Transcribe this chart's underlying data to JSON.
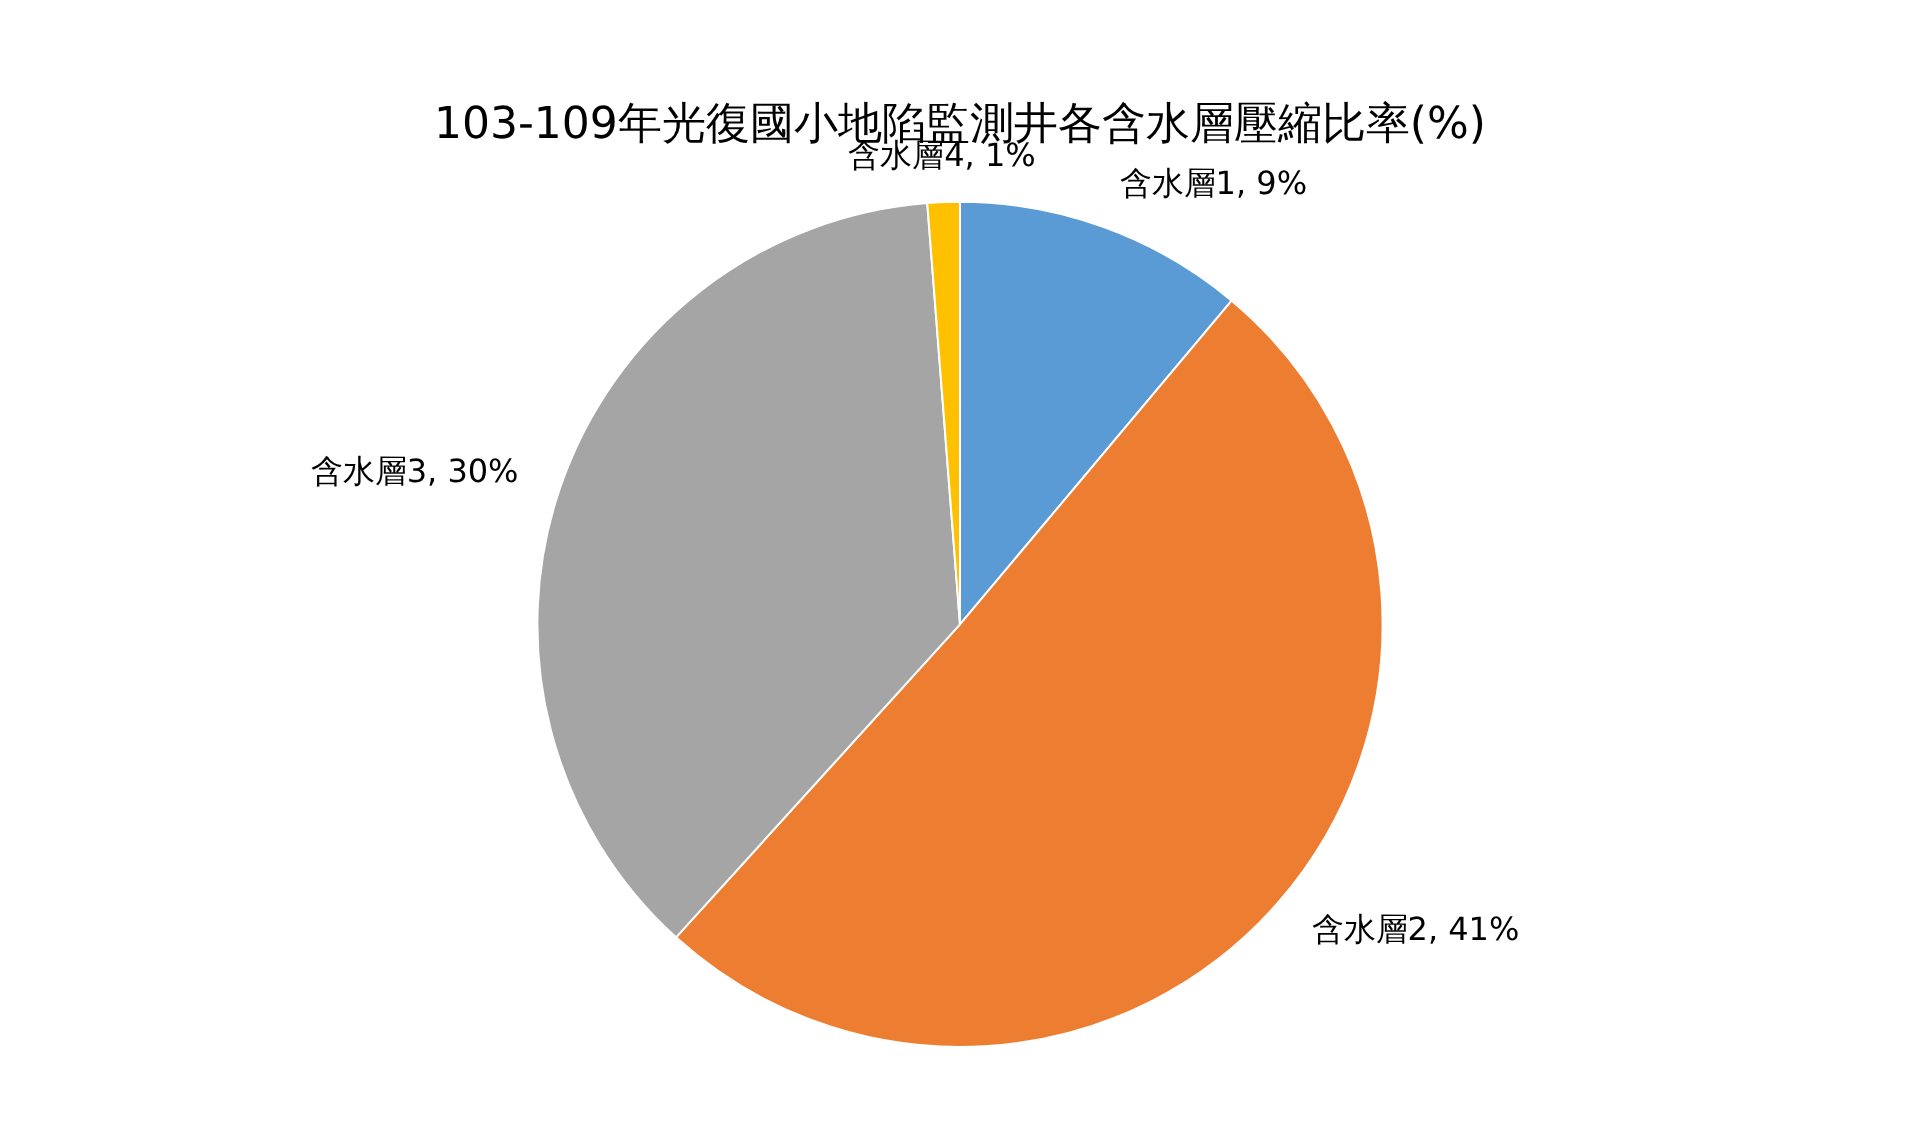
{
  "chart_data": {
    "type": "pie",
    "title": "103-109年光復國小地陷監測井各含水層壓縮比率(%)",
    "categories": [
      "含水層1",
      "含水層2",
      "含水層3",
      "含水層4"
    ],
    "values": [
      9,
      41,
      30,
      1
    ],
    "colors": [
      "#5b9bd5",
      "#ed7d31",
      "#a5a5a5",
      "#ffc000"
    ],
    "value_labels": [
      "9%",
      "41%",
      "30%",
      "1%"
    ],
    "legend": false
  }
}
